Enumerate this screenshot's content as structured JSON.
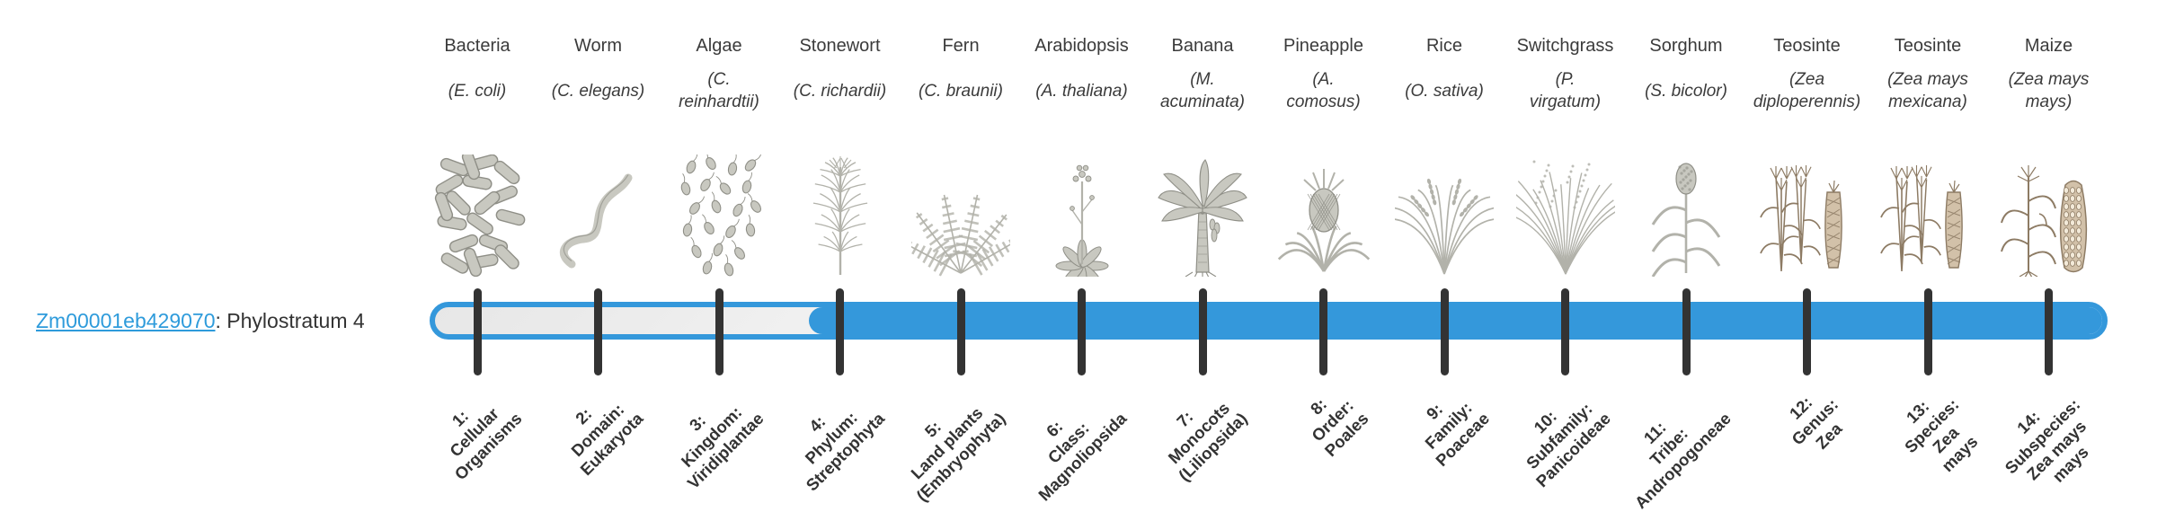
{
  "gene": {
    "id": "Zm00001eb429070",
    "separator": ": ",
    "phylostratum_label": "Phylostratum 4",
    "link_color": "#2e9bdb"
  },
  "timeline": {
    "bar_color": "#3498db",
    "tick_color": "#333333",
    "unfilled_color": "#f2f2f2",
    "filled_from_stratum": 4,
    "total_strata": 14,
    "strata": [
      {
        "num": 1,
        "organism": "Bacteria",
        "species_lines": [
          "(E. coli)"
        ],
        "tick_lines": [
          "1:",
          "Cellular",
          "Organisms"
        ],
        "icon": "bacteria-icon"
      },
      {
        "num": 2,
        "organism": "Worm",
        "species_lines": [
          "(C. elegans)"
        ],
        "tick_lines": [
          "2:",
          "Domain:",
          "Eukaryota"
        ],
        "icon": "worm-icon"
      },
      {
        "num": 3,
        "organism": "Algae",
        "species_lines": [
          "(C.",
          "reinhardtii)"
        ],
        "tick_lines": [
          "3:",
          "Kingdom:",
          "Viridiplantae"
        ],
        "icon": "algae-icon"
      },
      {
        "num": 4,
        "organism": "Stonewort",
        "species_lines": [
          "(C. richardii)"
        ],
        "tick_lines": [
          "4:",
          "Phylum:",
          "Streptophyta"
        ],
        "icon": "stonewort-icon"
      },
      {
        "num": 5,
        "organism": "Fern",
        "species_lines": [
          "(C. braunii)"
        ],
        "tick_lines": [
          "5:",
          "Land plants",
          "(Embryophyta)"
        ],
        "icon": "fern-icon"
      },
      {
        "num": 6,
        "organism": "Arabidopsis",
        "species_lines": [
          "(A. thaliana)"
        ],
        "tick_lines": [
          "6:",
          "Class:",
          "Magnoliopsida"
        ],
        "icon": "arabidopsis-icon"
      },
      {
        "num": 7,
        "organism": "Banana",
        "species_lines": [
          "(M.",
          "acuminata)"
        ],
        "tick_lines": [
          "7:",
          "Monocots",
          "(Liliopsida)"
        ],
        "icon": "banana-icon"
      },
      {
        "num": 8,
        "organism": "Pineapple",
        "species_lines": [
          "(A.",
          "comosus)"
        ],
        "tick_lines": [
          "8:",
          "Order:",
          "Poales"
        ],
        "icon": "pineapple-icon"
      },
      {
        "num": 9,
        "organism": "Rice",
        "species_lines": [
          "(O. sativa)"
        ],
        "tick_lines": [
          "9:",
          "Family:",
          "Poaceae"
        ],
        "icon": "rice-icon"
      },
      {
        "num": 10,
        "organism": "Switchgrass",
        "species_lines": [
          "(P.",
          "virgatum)"
        ],
        "tick_lines": [
          "10:",
          "Subfamily:",
          "Panicoideae"
        ],
        "icon": "switchgrass-icon"
      },
      {
        "num": 11,
        "organism": "Sorghum",
        "species_lines": [
          "(S. bicolor)"
        ],
        "tick_lines": [
          "11:",
          "Tribe:",
          "Andropogoneae"
        ],
        "icon": "sorghum-icon"
      },
      {
        "num": 12,
        "organism": "Teosinte",
        "species_lines": [
          "(Zea",
          "diploperennis)"
        ],
        "tick_lines": [
          "12:",
          "Genus:",
          "Zea"
        ],
        "icon": "teosinte-icon"
      },
      {
        "num": 13,
        "organism": "Teosinte",
        "species_lines": [
          "(Zea mays",
          "mexicana)"
        ],
        "tick_lines": [
          "13:",
          "Species:",
          "Zea",
          "mays"
        ],
        "icon": "teosinte-icon"
      },
      {
        "num": 14,
        "organism": "Maize",
        "species_lines": [
          "(Zea mays",
          "mays)"
        ],
        "tick_lines": [
          "14:",
          "Subspecies:",
          "Zea mays",
          "mays"
        ],
        "icon": "maize-icon"
      }
    ]
  }
}
